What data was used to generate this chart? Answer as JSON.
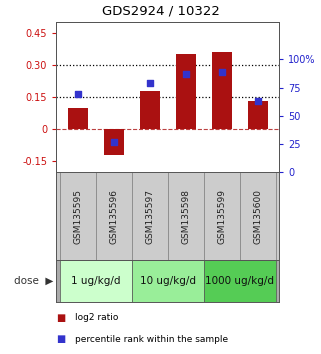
{
  "title": "GDS2924 / 10322",
  "samples": [
    "GSM135595",
    "GSM135596",
    "GSM135597",
    "GSM135598",
    "GSM135599",
    "GSM135600"
  ],
  "log2_ratio": [
    0.1,
    -0.12,
    0.18,
    0.35,
    0.36,
    0.13
  ],
  "percentile_rank": [
    69,
    27,
    79,
    87,
    89,
    63
  ],
  "bar_color": "#aa1111",
  "dot_color": "#3333cc",
  "ylim_left": [
    -0.2,
    0.5
  ],
  "ylim_right": [
    0,
    133.33
  ],
  "yticks_left": [
    -0.15,
    0,
    0.15,
    0.3,
    0.45
  ],
  "yticks_right": [
    0,
    25,
    50,
    75,
    100
  ],
  "ytick_labels_left": [
    "-0.15",
    "0",
    "0.15",
    "0.30",
    "0.45"
  ],
  "ytick_labels_right": [
    "0",
    "25",
    "50",
    "75",
    "100%"
  ],
  "hlines": [
    0.15,
    0.3
  ],
  "dose_groups": [
    {
      "label": "1 ug/kg/d",
      "n": 2,
      "color": "#ccffcc"
    },
    {
      "label": "10 ug/kg/d",
      "n": 2,
      "color": "#99ee99"
    },
    {
      "label": "1000 ug/kg/d",
      "n": 2,
      "color": "#55cc55"
    }
  ],
  "dose_label": "dose",
  "legend_bar_label": "log2 ratio",
  "legend_dot_label": "percentile rank within the sample",
  "background_color": "#ffffff",
  "left_axis_color": "#cc1111",
  "right_axis_color": "#2222cc",
  "sample_bg_color": "#cccccc",
  "dose_bg_color": "#aaaaaa"
}
